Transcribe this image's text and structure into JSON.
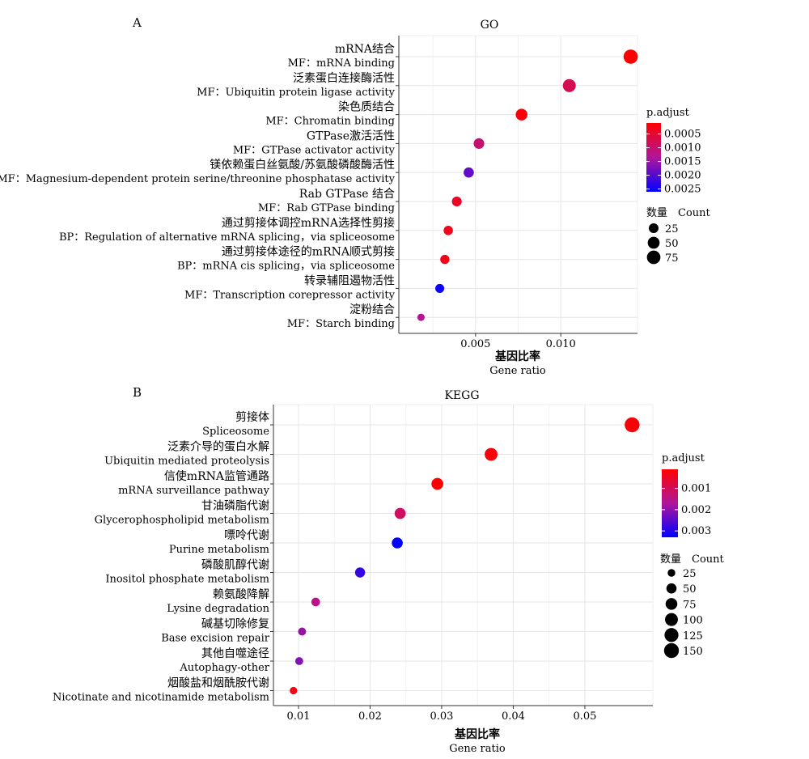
{
  "chart_data": [
    {
      "panel_letter": "A",
      "type": "scatter",
      "title": "GO",
      "xlabel_cn": "基因比率",
      "xlabel": "Gene ratio",
      "xticks": [
        0.005,
        0.01
      ],
      "xtick_labels": [
        "0.005",
        "0.010"
      ],
      "xlim": [
        0.0005,
        0.0145
      ],
      "grid": true,
      "legend_position": "right",
      "color_legend": {
        "title": "p.adjust",
        "ticks": [
          "0.0005",
          "0.0010",
          "0.0015",
          "0.0020",
          "0.0025"
        ],
        "tick_values": [
          0.0005,
          0.001,
          0.0015,
          0.002,
          0.0025
        ],
        "range": [
          0.0001,
          0.0026
        ],
        "low_color": "#ff0000",
        "high_color": "#0000ff"
      },
      "size_legend": {
        "title_cn": "数量",
        "title": "Count",
        "entries": [
          {
            "label": "25",
            "value": 25
          },
          {
            "label": "50",
            "value": 50
          },
          {
            "label": "75",
            "value": 75
          }
        ]
      },
      "terms": [
        {
          "cn": "mRNA结合",
          "en": "MF：mRNA binding",
          "gene_ratio": 0.0141,
          "p_adjust": 0.0001,
          "count": 88
        },
        {
          "cn": "泛素蛋白连接酶活性",
          "en": "MF：Ubiquitin protein ligase activity",
          "gene_ratio": 0.0105,
          "p_adjust": 0.0008,
          "count": 66
        },
        {
          "cn": "染色质结合",
          "en": "MF：Chromatin binding",
          "gene_ratio": 0.0077,
          "p_adjust": 0.0002,
          "count": 48
        },
        {
          "cn": "GTPase激活活性",
          "en": "MF：GTPase activator activity",
          "gene_ratio": 0.0052,
          "p_adjust": 0.001,
          "count": 34
        },
        {
          "cn": "镁依赖蛋白丝氨酸/苏氨酸磷酸酶活性",
          "en": "MF：Magnesium-dependent protein serine/threonine phosphatase activity",
          "gene_ratio": 0.0046,
          "p_adjust": 0.0019,
          "count": 30
        },
        {
          "cn": "Rab GTPase 结合",
          "en": "MF：Rab GTPase binding",
          "gene_ratio": 0.0039,
          "p_adjust": 0.0004,
          "count": 26
        },
        {
          "cn": "通过剪接体调控mRNA选择性剪接",
          "en": "BP：Regulation of alternative mRNA splicing，via spliceosome",
          "gene_ratio": 0.0034,
          "p_adjust": 0.0003,
          "count": 22
        },
        {
          "cn": "通过剪接体途径的mRNA顺式剪接",
          "en": "BP：mRNA cis splicing，via spliceosome",
          "gene_ratio": 0.0032,
          "p_adjust": 0.0003,
          "count": 21
        },
        {
          "cn": "转录辅阻遏物活性",
          "en": "MF：Transcription corepressor activity",
          "gene_ratio": 0.0029,
          "p_adjust": 0.0025,
          "count": 19
        },
        {
          "cn": "淀粉结合",
          "en": "MF：Starch binding",
          "gene_ratio": 0.0018,
          "p_adjust": 0.0013,
          "count": 10
        }
      ]
    },
    {
      "panel_letter": "B",
      "type": "scatter",
      "title": "KEGG",
      "xlabel_cn": "基因比率",
      "xlabel": "Gene ratio",
      "xticks": [
        0.01,
        0.02,
        0.03,
        0.04,
        0.05
      ],
      "xtick_labels": [
        "0.01",
        "0.02",
        "0.03",
        "0.04",
        "0.05"
      ],
      "xlim": [
        0.0065,
        0.0595
      ],
      "grid": true,
      "legend_position": "right",
      "color_legend": {
        "title": "p.adjust",
        "ticks": [
          "0.001",
          "0.002",
          "0.003"
        ],
        "tick_values": [
          0.001,
          0.002,
          0.003
        ],
        "range": [
          0.0001,
          0.0033
        ],
        "low_color": "#ff0000",
        "high_color": "#0000ff"
      },
      "size_legend": {
        "title_cn": "数量",
        "title": "Count",
        "entries": [
          {
            "label": "25",
            "value": 25
          },
          {
            "label": "50",
            "value": 50
          },
          {
            "label": "75",
            "value": 75
          },
          {
            "label": "100",
            "value": 100
          },
          {
            "label": "125",
            "value": 125
          },
          {
            "label": "150",
            "value": 150
          }
        ]
      },
      "terms": [
        {
          "cn": "剪接体",
          "en": "Spliceosome",
          "gene_ratio": 0.0566,
          "p_adjust": 0.0002,
          "count": 150
        },
        {
          "cn": "泛素介导的蛋白水解",
          "en": "Ubiquitin mediated proteolysis",
          "gene_ratio": 0.0369,
          "p_adjust": 0.0002,
          "count": 98
        },
        {
          "cn": "信使mRNA监管通路",
          "en": "mRNA  surveillance pathway",
          "gene_ratio": 0.0294,
          "p_adjust": 0.0001,
          "count": 78
        },
        {
          "cn": "甘油磷脂代谢",
          "en": "Glycerophospholipid metabolism",
          "gene_ratio": 0.0242,
          "p_adjust": 0.0011,
          "count": 64
        },
        {
          "cn": "嘌呤代谢",
          "en": "Purine metabolism",
          "gene_ratio": 0.0238,
          "p_adjust": 0.0033,
          "count": 63
        },
        {
          "cn": "磷酸肌醇代谢",
          "en": "Inositol phosphate metabolism",
          "gene_ratio": 0.0186,
          "p_adjust": 0.0028,
          "count": 49
        },
        {
          "cn": "赖氨酸降解",
          "en": "Lysine degradation",
          "gene_ratio": 0.0124,
          "p_adjust": 0.0015,
          "count": 33
        },
        {
          "cn": "碱基切除修复",
          "en": "Base excision repair",
          "gene_ratio": 0.0105,
          "p_adjust": 0.0019,
          "count": 28
        },
        {
          "cn": "其他自噬途径",
          "en": "Autophagy-other",
          "gene_ratio": 0.0101,
          "p_adjust": 0.0021,
          "count": 27
        },
        {
          "cn": "烟酸盐和烟酰胺代谢",
          "en": "Nicotinate and nicotinamide metabolism",
          "gene_ratio": 0.0093,
          "p_adjust": 0.0003,
          "count": 24
        }
      ]
    }
  ]
}
